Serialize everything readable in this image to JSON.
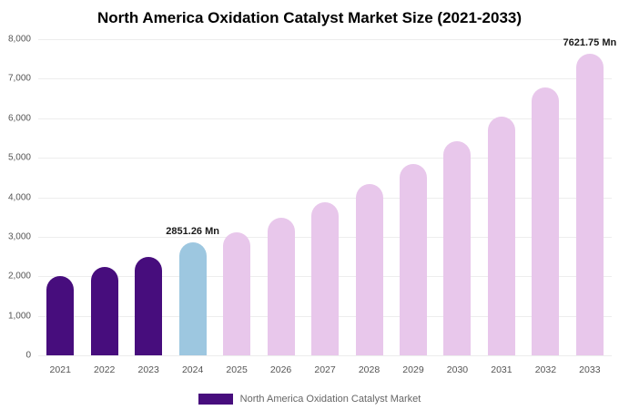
{
  "page": {
    "background": "#ffffff"
  },
  "chart_data": {
    "type": "bar",
    "title": "North America Oxidation Catalyst Market Size (2021-2033)",
    "categories": [
      "2021",
      "2022",
      "2023",
      "2024",
      "2025",
      "2026",
      "2027",
      "2028",
      "2029",
      "2030",
      "2031",
      "2032",
      "2033"
    ],
    "values": [
      2000,
      2240,
      2500,
      2851.26,
      3120,
      3480,
      3880,
      4330,
      4840,
      5420,
      6050,
      6780,
      7621.75
    ],
    "unit": "Mn",
    "ylim": [
      0,
      8000
    ],
    "yticks": [
      0,
      1000,
      2000,
      3000,
      4000,
      5000,
      6000,
      7000,
      8000
    ],
    "ytick_labels": [
      "0",
      "1,000",
      "2,000",
      "3,000",
      "4,000",
      "5,000",
      "6,000",
      "7,000",
      "8,000"
    ],
    "bar_colors": [
      "#470d7d",
      "#470d7d",
      "#470d7d",
      "#9dc7e0",
      "#e8c7eb",
      "#e8c7eb",
      "#e8c7eb",
      "#e8c7eb",
      "#e8c7eb",
      "#e8c7eb",
      "#e8c7eb",
      "#e8c7eb",
      "#e8c7eb"
    ],
    "data_labels": [
      {
        "index": 3,
        "text": "2851.26 Mn"
      },
      {
        "index": 12,
        "text": "7621.75 Mn"
      }
    ],
    "grid": true,
    "legend_position": "bottom"
  },
  "legend": {
    "label": "North America Oxidation Catalyst Market",
    "swatch_color": "#470d7d"
  },
  "colors": {
    "purple": "#470d7d",
    "blue": "#9dc7e0",
    "pink": "#e8c7eb",
    "axis_text": "#555555",
    "gridline": "#ededed"
  }
}
